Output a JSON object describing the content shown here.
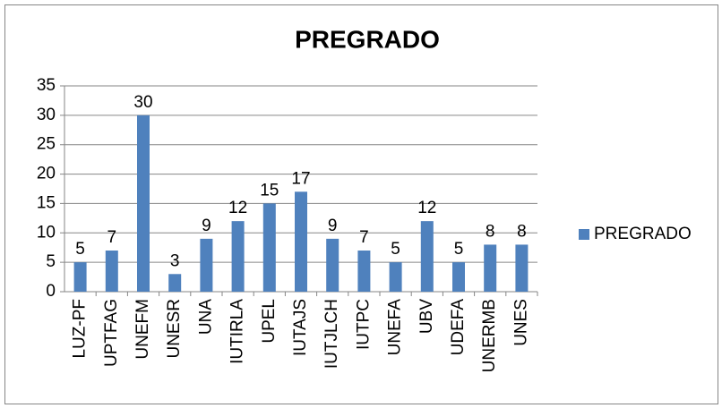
{
  "chart_data": {
    "type": "bar",
    "title": "PREGRADO",
    "categories": [
      "LUZ-PF",
      "UPTFAG",
      "UNEFM",
      "UNESR",
      "UNA",
      "IUTIRLA",
      "UPEL",
      "IUTAJS",
      "IUTJLCH",
      "IUTPC",
      "UNEFA",
      "UBV",
      "UDEFA",
      "UNERMB",
      "UNES"
    ],
    "series": [
      {
        "name": "PREGRADO",
        "color": "#4f81bd",
        "values": [
          5,
          7,
          30,
          3,
          9,
          12,
          15,
          17,
          9,
          7,
          5,
          12,
          5,
          8,
          8
        ]
      }
    ],
    "ylim": [
      0,
      35
    ],
    "yticks": [
      0,
      5,
      10,
      15,
      20,
      25,
      30,
      35
    ],
    "grid": true,
    "legend": "right"
  }
}
